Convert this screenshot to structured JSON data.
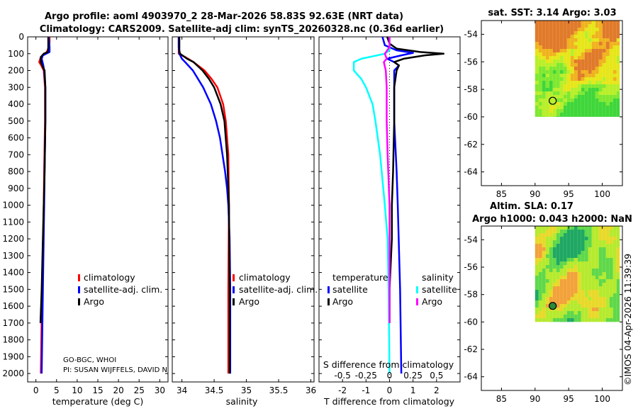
{
  "header": {
    "title_line1": "Argo profile: aoml 4903970_2 28-Mar-2026 58.83S 92.63E (NRT data)",
    "title_line2": "Climatology: CARS2009. Satellite-adj clim: synTS_20260328.nc (0.36d earlier)"
  },
  "colors": {
    "climatology": "#ff0000",
    "satellite_adj": "#0000ff",
    "argo": "#000000",
    "satellite": "#00ffff",
    "argo_sal": "#ff00ff"
  },
  "depth_ticks": [
    0,
    100,
    200,
    300,
    400,
    500,
    600,
    700,
    800,
    900,
    1000,
    1100,
    1200,
    1300,
    1400,
    1500,
    1600,
    1700,
    1800,
    1900,
    2000
  ],
  "chart_data": [
    {
      "type": "line",
      "name": "temperature-profile",
      "xlabel": "temperature (deg C)",
      "ylabel": "depth",
      "xlim": [
        -2,
        32
      ],
      "ylim": [
        2050,
        0
      ],
      "xticks": [
        0,
        5,
        10,
        15,
        20,
        25,
        30
      ],
      "legend": [
        "climatology",
        "satellite-adj. clim.",
        "Argo"
      ],
      "legend_position": "bottom-right",
      "footnote1": "GO-BGC, WHOI",
      "footnote2": "PI: SUSAN WIJFFELS, DAVID N",
      "series": [
        {
          "name": "climatology",
          "depth": [
            0,
            30,
            60,
            90,
            120,
            150,
            170,
            200,
            300,
            500,
            800,
            1000,
            1500,
            2000
          ],
          "values": [
            3.3,
            3.3,
            3.2,
            2.6,
            1.2,
            0.8,
            1.3,
            1.9,
            2.2,
            2.2,
            2.0,
            1.9,
            1.5,
            1.2
          ]
        },
        {
          "name": "satellite-adj. clim.",
          "depth": [
            0,
            30,
            60,
            90,
            110,
            130,
            150,
            170,
            200,
            300,
            500,
            800,
            1000,
            1500,
            2000
          ],
          "values": [
            3.1,
            3.2,
            3.3,
            3.3,
            1.7,
            1.4,
            1.6,
            1.8,
            2.0,
            2.3,
            2.3,
            2.1,
            2.0,
            1.7,
            1.4
          ]
        },
        {
          "name": "Argo",
          "depth": [
            0,
            30,
            60,
            90,
            100,
            120,
            150,
            180,
            200,
            300,
            500,
            800,
            1000,
            1200,
            1500,
            1700
          ],
          "values": [
            3.0,
            3.0,
            3.0,
            2.9,
            1.9,
            1.2,
            1.2,
            1.7,
            2.1,
            2.3,
            2.3,
            2.1,
            1.9,
            1.7,
            1.4,
            1.1
          ]
        }
      ]
    },
    {
      "type": "line",
      "name": "salinity-profile",
      "xlabel": "salinity",
      "xlim": [
        33.85,
        36.05
      ],
      "ylim": [
        2050,
        0
      ],
      "xticks": [
        34,
        34.5,
        35,
        35.5,
        36
      ],
      "xticklabels": [
        "34",
        "34.5",
        "35",
        "35.5",
        "36"
      ],
      "legend": [
        "climatology",
        "satellite-adj. clim.",
        "Argo"
      ],
      "legend_position": "bottom-right",
      "series": [
        {
          "name": "climatology",
          "depth": [
            0,
            60,
            100,
            120,
            150,
            200,
            250,
            300,
            400,
            500,
            700,
            1000,
            1500,
            2000
          ],
          "values": [
            33.95,
            33.95,
            33.95,
            34.05,
            34.18,
            34.35,
            34.46,
            34.55,
            34.64,
            34.68,
            34.72,
            34.73,
            34.72,
            34.72
          ]
        },
        {
          "name": "satellite-adj. clim.",
          "depth": [
            0,
            60,
            100,
            130,
            150,
            200,
            300,
            400,
            500,
            600,
            700,
            800,
            900,
            1000,
            1200,
            1500,
            2000
          ],
          "values": [
            33.95,
            33.95,
            33.96,
            34.0,
            34.05,
            34.17,
            34.33,
            34.45,
            34.53,
            34.59,
            34.63,
            34.67,
            34.7,
            34.72,
            34.74,
            34.75,
            34.75
          ]
        },
        {
          "name": "Argo",
          "depth": [
            0,
            80,
            100,
            130,
            150,
            200,
            250,
            300,
            400,
            500,
            700,
            1000,
            1500,
            2000
          ],
          "values": [
            33.96,
            33.96,
            33.97,
            34.08,
            34.18,
            34.32,
            34.42,
            34.5,
            34.6,
            34.66,
            34.7,
            34.73,
            34.74,
            34.74
          ]
        }
      ]
    },
    {
      "type": "line",
      "name": "difference-from-climatology",
      "xlabel": "T difference from climatology",
      "xlabel_top": "S difference from climatology",
      "xlim": [
        -3,
        3
      ],
      "ylim": [
        2050,
        0
      ],
      "xticks": [
        -2,
        -1,
        0,
        1,
        2
      ],
      "xticklabels": [
        "-2",
        "-1",
        "0",
        "1",
        "2"
      ],
      "s_ticklabels": [
        "-0.5",
        "-0.25",
        "0",
        "0.25",
        "0.5"
      ],
      "legend_temperature_title": "temperature",
      "legend_salinity_title": "salinity",
      "legend_temperature": [
        "satellite",
        "Argo"
      ],
      "legend_salinity": [
        "satellite",
        "Argo"
      ],
      "series": [
        {
          "name": "T satellite",
          "depth": [
            0,
            50,
            80,
            95,
            110,
            130,
            150,
            170,
            200,
            300,
            500,
            800,
            1000,
            1500,
            2000
          ],
          "values": [
            -0.3,
            -0.2,
            0.3,
            1.0,
            0.5,
            -0.1,
            0.2,
            0.4,
            0.2,
            0.2,
            0.2,
            0.3,
            0.35,
            0.45,
            0.5
          ]
        },
        {
          "name": "T Argo",
          "depth": [
            0,
            40,
            70,
            90,
            100,
            110,
            130,
            150,
            170,
            200,
            300,
            500,
            800,
            1000,
            1200,
            1500,
            1700
          ],
          "values": [
            -0.1,
            0.0,
            0.3,
            1.3,
            2.3,
            1.5,
            0.6,
            0.2,
            0.4,
            0.3,
            0.2,
            0.2,
            0.15,
            0.1,
            0.1,
            0.0,
            0.0
          ]
        },
        {
          "name": "S satellite",
          "depth": [
            0,
            80,
            100,
            130,
            150,
            200,
            250,
            300,
            400,
            500,
            700,
            1000,
            1200,
            1500,
            2000
          ],
          "values": [
            0.0,
            0.0,
            -0.05,
            -0.3,
            -0.38,
            -0.38,
            -0.3,
            -0.25,
            -0.18,
            -0.15,
            -0.1,
            -0.05,
            -0.02,
            -0.01,
            0.0
          ]
        },
        {
          "name": "S Argo",
          "depth": [
            0,
            60,
            100,
            130,
            150,
            200,
            300,
            500,
            700,
            1000,
            1200,
            1500,
            1700
          ],
          "values": [
            0.0,
            0.0,
            -0.05,
            -0.03,
            -0.06,
            -0.04,
            -0.03,
            -0.03,
            -0.02,
            0.0,
            0.0,
            0.0,
            0.0
          ]
        }
      ]
    },
    {
      "type": "heatmap",
      "name": "sst-map",
      "title": "sat. SST: 3.14 Argo: 3.03",
      "xlim": [
        82,
        103
      ],
      "ylim": [
        -65,
        -53
      ],
      "xticks": [
        85,
        90,
        95,
        100
      ],
      "yticks": [
        -54,
        -56,
        -58,
        -60,
        -62,
        -64
      ],
      "xticklabels": [
        "85",
        "90",
        "95",
        "100"
      ],
      "yticklabels": [
        "-54",
        "-56",
        "-58",
        "-60",
        "-62",
        "-64"
      ],
      "field_extent": {
        "lon": [
          90,
          102.6
        ],
        "lat": [
          -60,
          -53
        ]
      },
      "argo_position": {
        "lon": 92.63,
        "lat": -58.83
      }
    },
    {
      "type": "heatmap",
      "name": "sla-map",
      "title_line1": "Altim. SLA: 0.17",
      "title_line2": "Argo h1000: 0.043 h2000: NaN",
      "xlim": [
        82,
        103
      ],
      "ylim": [
        -65,
        -53
      ],
      "xticks": [
        85,
        90,
        95,
        100
      ],
      "yticks": [
        -54,
        -56,
        -58,
        -60,
        -62,
        -64
      ],
      "xticklabels": [
        "85",
        "90",
        "95",
        "100"
      ],
      "yticklabels": [
        "-54",
        "-56",
        "-58",
        "-60",
        "-62",
        "-64"
      ],
      "field_extent": {
        "lon": [
          90,
          102.6
        ],
        "lat": [
          -60,
          -53
        ]
      },
      "argo_position": {
        "lon": 92.63,
        "lat": -58.83
      }
    }
  ],
  "footer": {
    "stamp": "©IMOS 04-Apr-2026 11:39:39"
  }
}
